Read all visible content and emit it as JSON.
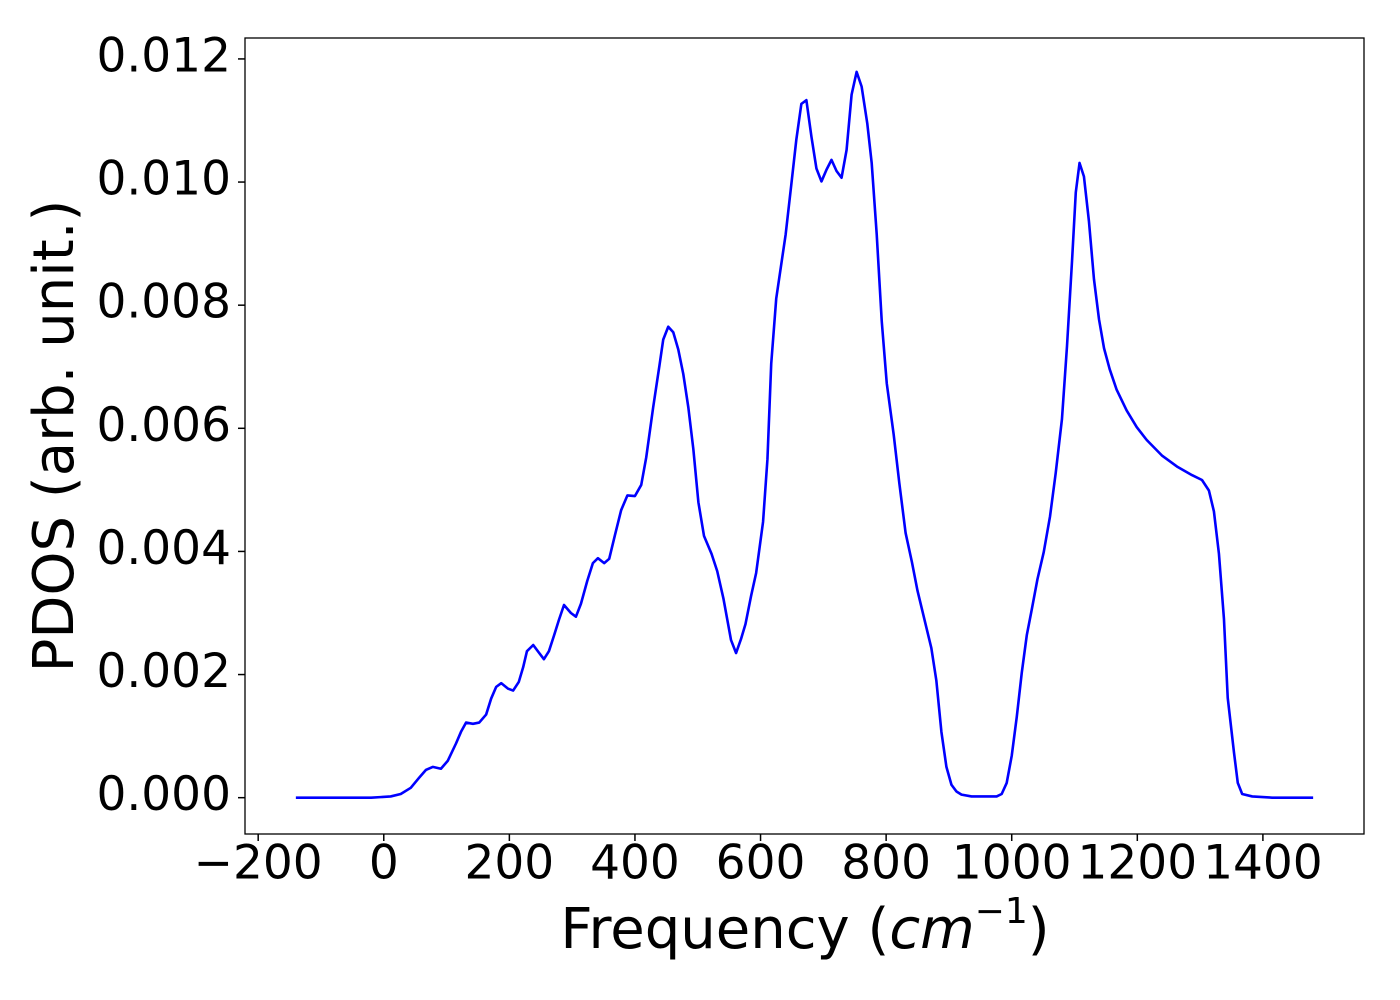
{
  "chart_data": {
    "type": "line",
    "xlabel": {
      "text": "Frequency (",
      "italic": "cm",
      "sup": "−1",
      "close": ")"
    },
    "ylabel": "PDOS (arb. unit.)",
    "xlim": [
      -221,
      1561
    ],
    "ylim": [
      -0.00059,
      0.01234
    ],
    "xticks": [
      {
        "value": -200,
        "label": "−200"
      },
      0,
      200,
      400,
      600,
      800,
      1000,
      1200,
      1400
    ],
    "yticks": [
      {
        "value": 0,
        "label": "0.000"
      },
      {
        "value": 0.002,
        "label": "0.002"
      },
      {
        "value": 0.004,
        "label": "0.004"
      },
      {
        "value": 0.006,
        "label": "0.006"
      },
      {
        "value": 0.008,
        "label": "0.008"
      },
      {
        "value": 0.01,
        "label": "0.010"
      },
      {
        "value": 0.012,
        "label": "0.012"
      }
    ],
    "grid": false,
    "series": [
      {
        "color": "#0000ff",
        "x": [
          -140,
          -20,
          11,
          27,
          43,
          56,
          67,
          78,
          91,
          102,
          115,
          123,
          131,
          142,
          152,
          163,
          171,
          179,
          187,
          198,
          206,
          215,
          222,
          228,
          238,
          246,
          255,
          263,
          271,
          279,
          287,
          298,
          306,
          314,
          324,
          333,
          341,
          351,
          359,
          368,
          378,
          388,
          400,
          410,
          418,
          429,
          439,
          445,
          453,
          461,
          469,
          477,
          485,
          493,
          501,
          510,
          522,
          531,
          541,
          553,
          561,
          569,
          576,
          585,
          593,
          604,
          611,
          617,
          625,
          640,
          649,
          657,
          665,
          673,
          681,
          689,
          697,
          705,
          713,
          721,
          729,
          737,
          745,
          753,
          761,
          770,
          777,
          785,
          793,
          801,
          812,
          821,
          831,
          841,
          850,
          863,
          872,
          880,
          888,
          896,
          904,
          912,
          920,
          936,
          960,
          976,
          984,
          992,
          1000,
          1008,
          1016,
          1024,
          1032,
          1041,
          1051,
          1061,
          1070,
          1080,
          1088,
          1096,
          1102,
          1108,
          1115,
          1123,
          1131,
          1139,
          1147,
          1156,
          1167,
          1183,
          1199,
          1215,
          1239,
          1263,
          1287,
          1303,
          1314,
          1322,
          1330,
          1338,
          1344,
          1354,
          1360,
          1367,
          1383,
          1415,
          1480
        ],
        "values": [
          0,
          0,
          2e-05,
          6e-05,
          0.00016,
          0.00032,
          0.00045,
          0.0005,
          0.00047,
          0.0006,
          0.00088,
          0.00107,
          0.00122,
          0.0012,
          0.00122,
          0.00135,
          0.00161,
          0.0018,
          0.00186,
          0.00177,
          0.00174,
          0.00188,
          0.00212,
          0.00238,
          0.00248,
          0.00237,
          0.00225,
          0.00238,
          0.00263,
          0.00289,
          0.00313,
          0.003,
          0.00294,
          0.00315,
          0.00352,
          0.00381,
          0.00389,
          0.00381,
          0.00388,
          0.00426,
          0.00467,
          0.00491,
          0.0049,
          0.00508,
          0.00553,
          0.00634,
          0.00702,
          0.00744,
          0.00765,
          0.00756,
          0.00728,
          0.00688,
          0.00634,
          0.00566,
          0.0048,
          0.00425,
          0.00396,
          0.00368,
          0.00323,
          0.00256,
          0.00235,
          0.00258,
          0.00282,
          0.00328,
          0.00365,
          0.00448,
          0.0055,
          0.00705,
          0.00811,
          0.00915,
          0.00996,
          0.01069,
          0.01127,
          0.01133,
          0.01074,
          0.01022,
          0.01001,
          0.0102,
          0.01036,
          0.01018,
          0.01007,
          0.01052,
          0.01142,
          0.01179,
          0.01155,
          0.01095,
          0.01031,
          0.00915,
          0.00774,
          0.00673,
          0.0059,
          0.00511,
          0.0043,
          0.00383,
          0.00336,
          0.00281,
          0.00243,
          0.0019,
          0.00107,
          0.0005,
          0.00021,
          0.0001,
          5e-05,
          2e-05,
          2e-05,
          2e-05,
          6e-05,
          0.00024,
          0.00068,
          0.00131,
          0.00203,
          0.00264,
          0.00306,
          0.00355,
          0.00399,
          0.00457,
          0.00527,
          0.00615,
          0.00733,
          0.00871,
          0.00983,
          0.01031,
          0.01009,
          0.00936,
          0.00842,
          0.00777,
          0.0073,
          0.00696,
          0.00663,
          0.00629,
          0.00602,
          0.00581,
          0.00556,
          0.00538,
          0.00524,
          0.00516,
          0.00499,
          0.00465,
          0.00396,
          0.0029,
          0.00162,
          0.00073,
          0.00024,
          6e-05,
          2e-05,
          0,
          0
        ]
      }
    ]
  }
}
